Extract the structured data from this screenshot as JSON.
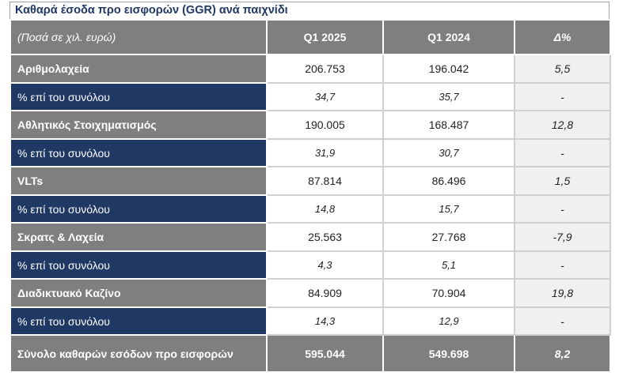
{
  "title": "Καθαρά έσοδα προ εισφορών (GGR) ανά παιχνίδι",
  "header": {
    "label": "(Ποσά σε χιλ. ευρώ)",
    "col1": "Q1 2025",
    "col2": "Q1 2024",
    "col3": "Δ%"
  },
  "rows": [
    {
      "label": "Αριθμολαχεία",
      "q1_2025": "206.753",
      "q1_2024": "196.042",
      "delta": "5,5",
      "pct_label": "% επί του συνόλου",
      "pct_2025": "34,7",
      "pct_2024": "35,7",
      "pct_delta": "-"
    },
    {
      "label": "Αθλητικός Στοιχηματισμός",
      "q1_2025": "190.005",
      "q1_2024": "168.487",
      "delta": "12,8",
      "pct_label": "% επί του συνόλου",
      "pct_2025": "31,9",
      "pct_2024": "30,7",
      "pct_delta": "-"
    },
    {
      "label": "VLTs",
      "q1_2025": "87.814",
      "q1_2024": "86.496",
      "delta": "1,5",
      "pct_label": "% επί του συνόλου",
      "pct_2025": "14,8",
      "pct_2024": "15,7",
      "pct_delta": "-"
    },
    {
      "label": "Σκρατς & Λαχεία",
      "q1_2025": "25.563",
      "q1_2024": "27.768",
      "delta": "-7,9",
      "pct_label": "% επί του συνόλου",
      "pct_2025": "4,3",
      "pct_2024": "5,1",
      "pct_delta": "-"
    },
    {
      "label": "Διαδικτυακό Καζίνο",
      "q1_2025": "84.909",
      "q1_2024": "70.904",
      "delta": "19,8",
      "pct_label": "% επί του συνόλου",
      "pct_2025": "14,3",
      "pct_2024": "12,9",
      "pct_delta": "-"
    }
  ],
  "total": {
    "label": "Σύνολο καθαρών εσόδων προ εισφορών",
    "q1_2025": "595.044",
    "q1_2024": "549.698",
    "delta": "8,2"
  },
  "colors": {
    "header_gray": "#7f7f7f",
    "navy": "#1f3864",
    "title_blue": "#1f3864"
  }
}
